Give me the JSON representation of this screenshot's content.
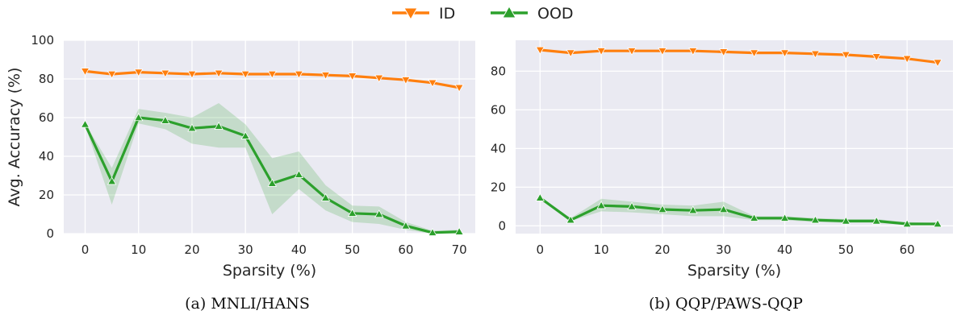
{
  "legend": {
    "items": [
      {
        "label": "ID",
        "color": "#ff7f0e",
        "marker": "triangle-down"
      },
      {
        "label": "OOD",
        "color": "#2ca02c",
        "marker": "triangle-up"
      }
    ]
  },
  "captions": {
    "a": "(a) MNLI/HANS",
    "b": "(b) QQP/PAWS-QQP"
  },
  "chart_data": [
    {
      "type": "line",
      "title": "",
      "xlabel": "Sparsity (%)",
      "ylabel": "Avg. Accuracy (%)",
      "xlim": [
        -4,
        73
      ],
      "ylim": [
        0,
        100
      ],
      "xticks": [
        0,
        10,
        20,
        30,
        40,
        50,
        60,
        70
      ],
      "yticks": [
        0,
        20,
        40,
        60,
        80,
        100
      ],
      "grid": true,
      "series": [
        {
          "name": "ID",
          "color": "#ff7f0e",
          "marker": "triangle-down",
          "x": [
            0,
            5,
            10,
            15,
            20,
            25,
            30,
            35,
            40,
            45,
            50,
            55,
            60,
            65,
            70
          ],
          "y": [
            84,
            82.5,
            83.5,
            83,
            82.5,
            83,
            82.5,
            82.5,
            82.5,
            82,
            81.5,
            80.5,
            79.5,
            78,
            75.5
          ]
        },
        {
          "name": "OOD",
          "color": "#2ca02c",
          "marker": "triangle-up",
          "x": [
            0,
            5,
            10,
            15,
            20,
            25,
            30,
            35,
            40,
            45,
            50,
            55,
            60,
            65,
            70
          ],
          "y": [
            56.5,
            27,
            60,
            58.5,
            54.5,
            55.5,
            50.5,
            26,
            30.5,
            18.5,
            10.5,
            10,
            4,
            0.5,
            1
          ],
          "band_low": [
            56,
            15,
            57,
            54,
            46.5,
            44.5,
            44.5,
            10,
            23,
            12,
            6,
            5,
            2,
            0,
            0
          ],
          "band_high": [
            57,
            34,
            64.5,
            62.5,
            60,
            67.5,
            56.5,
            39,
            42.5,
            25,
            14.5,
            14,
            6,
            1.5,
            2
          ]
        }
      ]
    },
    {
      "type": "line",
      "title": "",
      "xlabel": "Sparsity (%)",
      "ylabel": "",
      "xlim": [
        -4,
        67.5
      ],
      "ylim": [
        -4,
        96
      ],
      "xticks": [
        0,
        10,
        20,
        30,
        40,
        50,
        60
      ],
      "yticks": [
        0,
        20,
        40,
        60,
        80
      ],
      "grid": true,
      "series": [
        {
          "name": "ID",
          "color": "#ff7f0e",
          "marker": "triangle-down",
          "x": [
            0,
            5,
            10,
            15,
            20,
            25,
            30,
            35,
            40,
            45,
            50,
            55,
            60,
            65
          ],
          "y": [
            91,
            89.5,
            90.5,
            90.5,
            90.5,
            90.5,
            90,
            89.5,
            89.5,
            89,
            88.5,
            87.5,
            86.5,
            84.5
          ]
        },
        {
          "name": "OOD",
          "color": "#2ca02c",
          "marker": "triangle-up",
          "x": [
            0,
            5,
            10,
            15,
            20,
            25,
            30,
            35,
            40,
            45,
            50,
            55,
            60,
            65
          ],
          "y": [
            14.5,
            3,
            10.5,
            10,
            8.5,
            8,
            8.5,
            4,
            4,
            3,
            2.5,
            2.5,
            1,
            1
          ],
          "band_low": [
            14,
            2.5,
            7.5,
            7,
            6,
            5,
            5,
            3,
            3,
            2,
            1.5,
            1.5,
            0.5,
            0.5
          ],
          "band_high": [
            15,
            4,
            14,
            12.5,
            11,
            10.5,
            12.5,
            5,
            5,
            4,
            3.5,
            3.5,
            2,
            1.5
          ]
        }
      ]
    }
  ]
}
